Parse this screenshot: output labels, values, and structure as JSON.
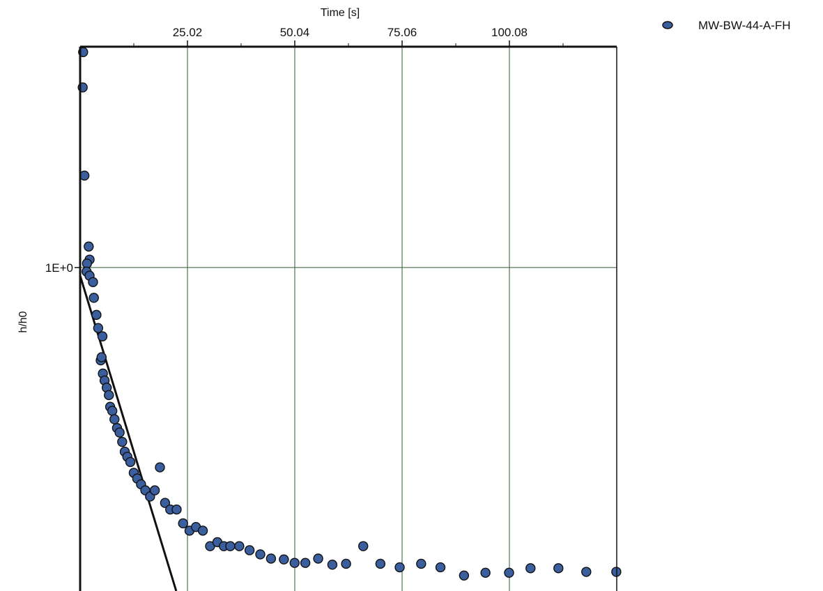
{
  "chart_data": {
    "type": "scatter",
    "title": "",
    "xlabel": "Time [s]",
    "ylabel": "h/h0",
    "xlim": [
      0,
      125.1
    ],
    "ylim": [
      0.2,
      3.0
    ],
    "y_log_scale": true,
    "x_ticks": [
      25.02,
      50.04,
      75.06,
      100.08
    ],
    "x_tick_labels": [
      "25.02",
      "50.04",
      "75.06",
      "100.08"
    ],
    "y_ticks": [
      1.0
    ],
    "y_tick_labels": [
      "1E+0"
    ],
    "grid": true,
    "legend_position": "top-right",
    "series": [
      {
        "name": "MW-BW-44-A-FH",
        "marker": "circle",
        "color": "#3b5f9e",
        "x": [
          0.7,
          0.6,
          1.0,
          2.0,
          2.2,
          1.6,
          1.5,
          2.2,
          3.0,
          3.2,
          3.8,
          4.2,
          5.2,
          4.8,
          5.0,
          5.3,
          5.7,
          6.2,
          6.7,
          7.0,
          7.5,
          8.0,
          8.6,
          9.2,
          9.8,
          10.4,
          11.0,
          11.7,
          12.5,
          13.3,
          14.2,
          15.2,
          16.3,
          17.4,
          18.6,
          19.8,
          21.0,
          22.5,
          24.0,
          25.5,
          27.0,
          28.6,
          30.3,
          32.0,
          33.5,
          35.0,
          37.1,
          39.5,
          42.0,
          44.5,
          47.5,
          50.0,
          52.5,
          55.5,
          58.8,
          62.0,
          66.0,
          70.0,
          74.5,
          79.5,
          84.0,
          89.5,
          94.5,
          100.0,
          105.0,
          111.5,
          118.0,
          125.0
        ],
        "y": [
          2.92,
          2.45,
          1.58,
          1.11,
          1.04,
          1.02,
          0.98,
          0.96,
          0.93,
          0.86,
          0.79,
          0.74,
          0.71,
          0.63,
          0.64,
          0.59,
          0.57,
          0.55,
          0.53,
          0.5,
          0.49,
          0.47,
          0.45,
          0.44,
          0.42,
          0.4,
          0.39,
          0.38,
          0.36,
          0.35,
          0.34,
          0.33,
          0.32,
          0.33,
          0.37,
          0.31,
          0.3,
          0.3,
          0.28,
          0.27,
          0.275,
          0.27,
          0.25,
          0.255,
          0.25,
          0.25,
          0.25,
          0.245,
          0.24,
          0.235,
          0.234,
          0.23,
          0.23,
          0.235,
          0.228,
          0.229,
          0.25,
          0.229,
          0.225,
          0.229,
          0.225,
          0.216,
          0.219,
          0.219,
          0.224,
          0.224,
          0.22,
          0.22
        ]
      }
    ],
    "fit_line": {
      "color": "#111111",
      "x": [
        0,
        22.4
      ],
      "y": [
        0.96,
        0.2
      ]
    }
  }
}
